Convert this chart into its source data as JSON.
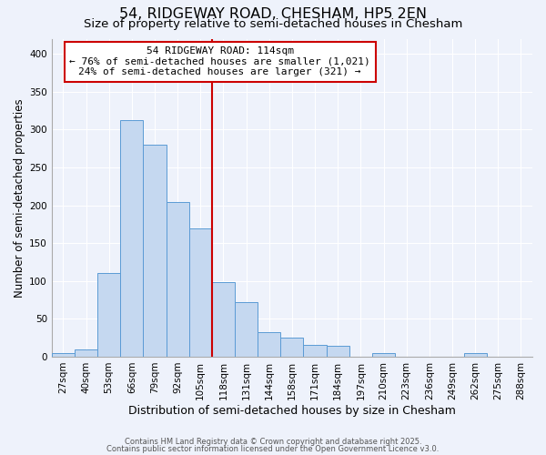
{
  "title": "54, RIDGEWAY ROAD, CHESHAM, HP5 2EN",
  "subtitle": "Size of property relative to semi-detached houses in Chesham",
  "xlabel": "Distribution of semi-detached houses by size in Chesham",
  "ylabel": "Number of semi-detached properties",
  "bin_labels": [
    "27sqm",
    "40sqm",
    "53sqm",
    "66sqm",
    "79sqm",
    "92sqm",
    "105sqm",
    "118sqm",
    "131sqm",
    "144sqm",
    "158sqm",
    "171sqm",
    "184sqm",
    "197sqm",
    "210sqm",
    "223sqm",
    "236sqm",
    "249sqm",
    "262sqm",
    "275sqm",
    "288sqm"
  ],
  "bar_values": [
    5,
    10,
    110,
    313,
    280,
    204,
    170,
    98,
    72,
    33,
    25,
    15,
    14,
    0,
    5,
    0,
    0,
    0,
    5,
    0,
    0
  ],
  "bar_color": "#c5d8f0",
  "bar_edge_color": "#5b9bd5",
  "vline_position": 7,
  "vline_color": "#cc0000",
  "annotation_text": "54 RIDGEWAY ROAD: 114sqm\n← 76% of semi-detached houses are smaller (1,021)\n24% of semi-detached houses are larger (321) →",
  "annotation_box_color": "#ffffff",
  "annotation_box_edge": "#cc0000",
  "ylim": [
    0,
    420
  ],
  "yticks": [
    0,
    50,
    100,
    150,
    200,
    250,
    300,
    350,
    400
  ],
  "background_color": "#eef2fb",
  "plot_bg_color": "#eef2fb",
  "footer1": "Contains HM Land Registry data © Crown copyright and database right 2025.",
  "footer2": "Contains public sector information licensed under the Open Government Licence v3.0.",
  "title_fontsize": 11.5,
  "subtitle_fontsize": 9.5,
  "xlabel_fontsize": 9,
  "ylabel_fontsize": 8.5,
  "annot_fontsize": 8,
  "tick_fontsize": 7.5
}
